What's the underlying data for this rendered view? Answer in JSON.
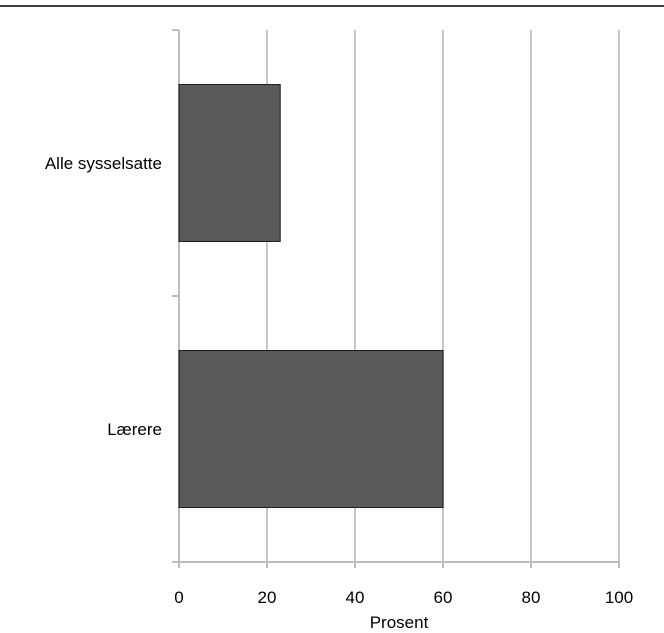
{
  "chart_data": {
    "type": "bar",
    "orientation": "horizontal",
    "title": "",
    "xlabel": "Prosent",
    "ylabel": "",
    "categories": [
      "Alle sysselsatte",
      "Lærere"
    ],
    "values": [
      23,
      60
    ],
    "xlim": [
      0,
      100
    ],
    "xticks": [
      0,
      20,
      40,
      60,
      80,
      100
    ],
    "xtick_labels": [
      "0",
      "20",
      "40",
      "60",
      "80",
      "100"
    ],
    "grid": "vertical",
    "legend": "none",
    "colors": {
      "bar": "#595959",
      "bar_stroke": "#1a1a1a",
      "grid": "#c8c8c8",
      "axis": "#bdbdbd",
      "top_rule": "#000000"
    }
  }
}
